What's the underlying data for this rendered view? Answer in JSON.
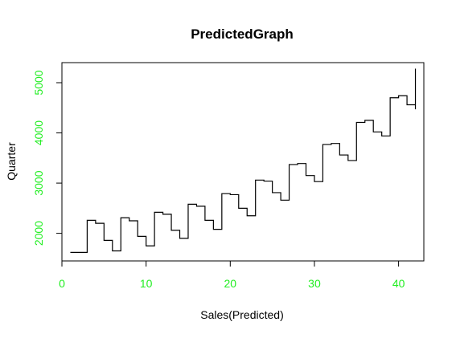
{
  "chart_data": {
    "type": "line",
    "step": true,
    "title": "PredictedGraph",
    "xlabel": "Sales(Predicted)",
    "ylabel": "Quarter",
    "xlim": [
      0,
      43
    ],
    "ylim": [
      1450,
      5400
    ],
    "xticks": [
      0,
      10,
      20,
      30,
      40
    ],
    "yticks": [
      2000,
      3000,
      4000,
      5000
    ],
    "tick_label_color": "#22ee22",
    "line_color": "#000000",
    "grid": false,
    "legend": false,
    "x": [
      1,
      2,
      3,
      4,
      5,
      6,
      7,
      8,
      9,
      10,
      11,
      12,
      13,
      14,
      15,
      16,
      17,
      18,
      19,
      20,
      21,
      22,
      23,
      24,
      25,
      26,
      27,
      28,
      29,
      30,
      31,
      32,
      33,
      34,
      35,
      36,
      37,
      38,
      39,
      40,
      41,
      42
    ],
    "y": [
      1620,
      1620,
      2260,
      2200,
      1860,
      1650,
      2310,
      2250,
      1940,
      1750,
      2420,
      2380,
      2060,
      1900,
      2580,
      2540,
      2260,
      2080,
      2790,
      2770,
      2500,
      2350,
      3060,
      3040,
      2810,
      2660,
      3370,
      3390,
      3150,
      3030,
      3770,
      3790,
      3560,
      3450,
      4210,
      4250,
      4020,
      3940,
      4700,
      4740,
      4560,
      4470
    ]
  }
}
